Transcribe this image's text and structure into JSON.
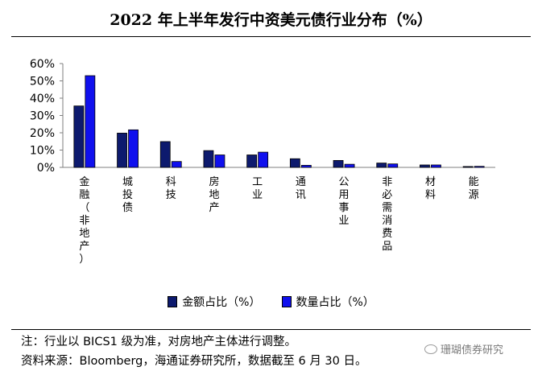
{
  "title": "2022 年上半年发行中资美元债行业分布（%）",
  "colors": {
    "amount": "#0d1a6e",
    "count": "#1010ee",
    "axis": "#7f7f7f"
  },
  "chart_data": {
    "type": "bar",
    "categories": [
      "金融（非地产）",
      "城投债",
      "科技",
      "房地产",
      "工业",
      "通讯",
      "公用事业",
      "非必需消费品",
      "材料",
      "能源"
    ],
    "series": [
      {
        "name": "金额占比（%）",
        "values": [
          35.5,
          19.8,
          14.9,
          9.7,
          7.2,
          5.0,
          4.0,
          2.5,
          1.4,
          0.5
        ]
      },
      {
        "name": "数量占比（%）",
        "values": [
          53.0,
          21.7,
          3.4,
          7.2,
          8.8,
          1.2,
          1.8,
          2.0,
          1.4,
          0.6
        ]
      }
    ],
    "yticks": [
      "0%",
      "10%",
      "20%",
      "30%",
      "40%",
      "50%",
      "60%"
    ],
    "ylim": [
      0,
      60
    ],
    "legend_position": "bottom"
  },
  "notes": {
    "line1": "注：行业以 BICS1 级为准，对房地产主体进行调整。",
    "line2": "资料来源：Bloomberg，海通证券研究所，数据截至 6 月 30 日。"
  },
  "watermark": "珊瑚债券研究"
}
